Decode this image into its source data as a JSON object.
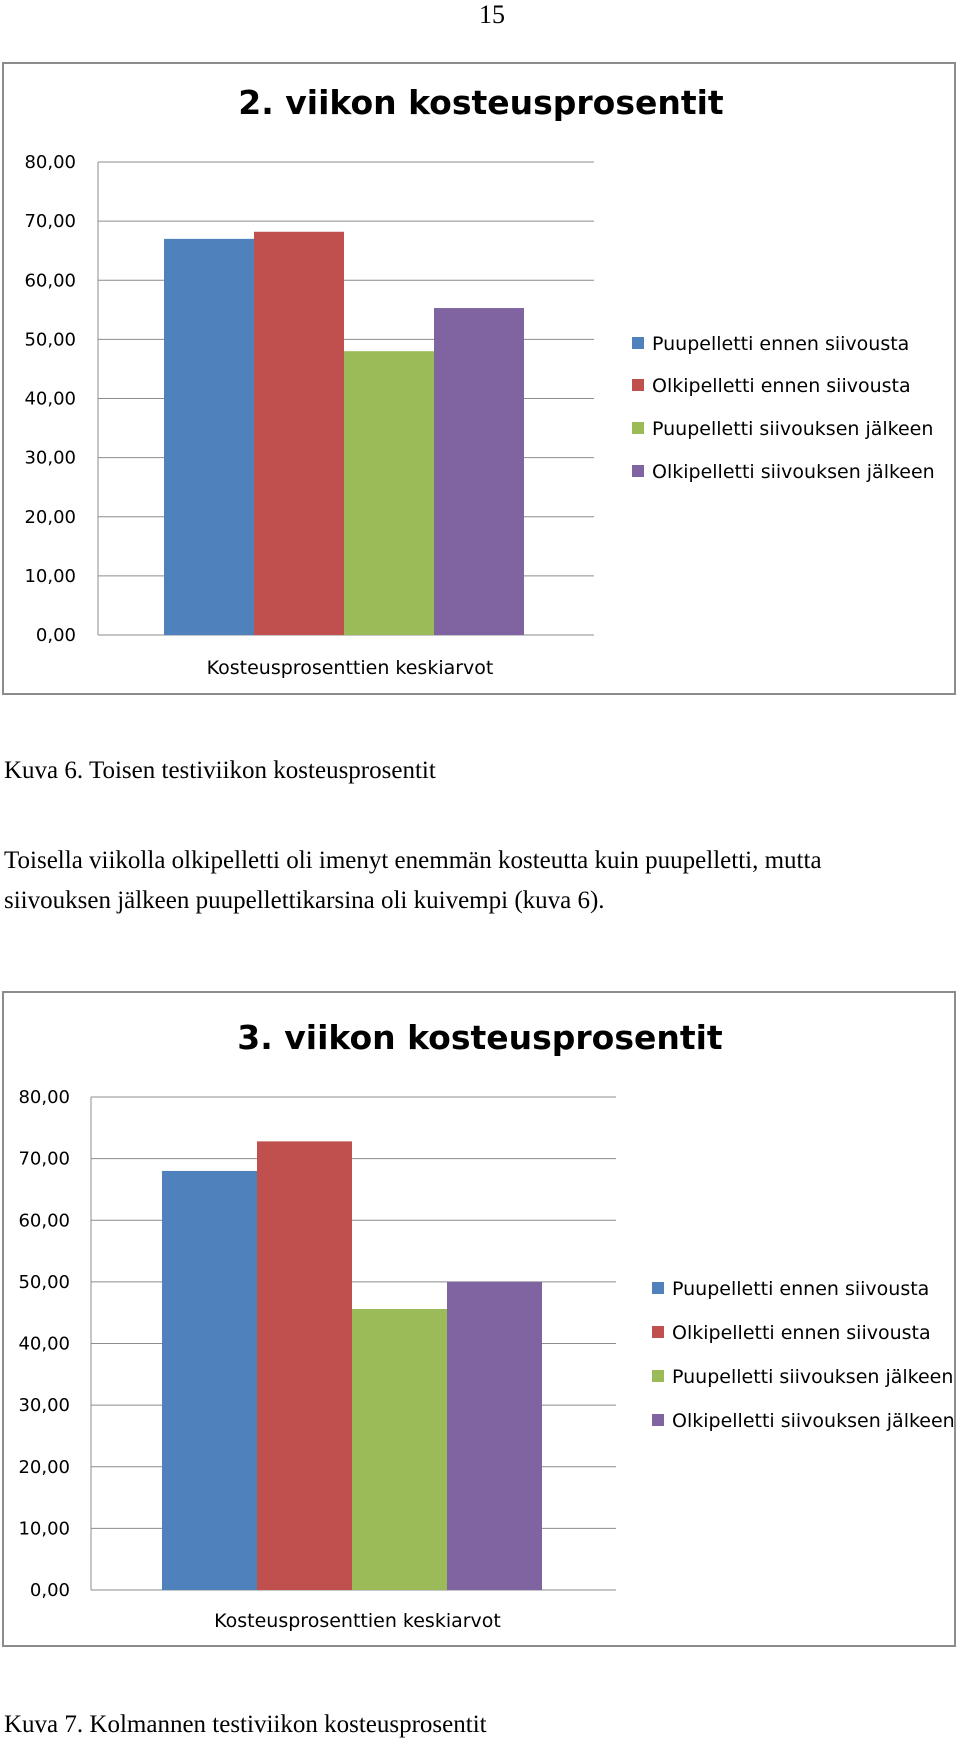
{
  "page_number": "15",
  "figure6": {
    "caption": "Kuva 6. Toisen testiviikon kosteusprosentit"
  },
  "paragraph": {
    "line1": "Toisella viikolla olkipelletti oli imenyt enemmän kosteutta kuin puupelletti, mutta",
    "line2": "siivouksen jälkeen puupellettikarsina oli kuivempi (kuva 6)."
  },
  "figure7": {
    "caption": "Kuva 7. Kolmannen testiviikon kosteusprosentit"
  },
  "colors": {
    "series1": "#4f81bd",
    "series2": "#c0504d",
    "series3": "#9bbb59",
    "series4": "#8064a2",
    "gridline": "#8c8c8c",
    "frame": "#8c8c8c"
  },
  "chart_data": [
    {
      "type": "bar",
      "title": "2. viikon kosteusprosentit",
      "categories": [
        "Kosteusprosenttien keskiarvot"
      ],
      "xlabel": "Kosteusprosenttien keskiarvot",
      "ylabel": "",
      "ylim": [
        0,
        80
      ],
      "yticks": [
        "0,00",
        "10,00",
        "20,00",
        "30,00",
        "40,00",
        "50,00",
        "60,00",
        "70,00",
        "80,00"
      ],
      "grid": true,
      "legend_position": "right",
      "series": [
        {
          "name": "Puupelletti ennen siivousta",
          "values": [
            67
          ]
        },
        {
          "name": "Olkipelletti ennen siivousta",
          "values": [
            68.2
          ]
        },
        {
          "name": "Puupelletti siivouksen jälkeen",
          "values": [
            48
          ]
        },
        {
          "name": "Olkipelletti siivouksen jälkeen",
          "values": [
            55.3
          ]
        }
      ]
    },
    {
      "type": "bar",
      "title": "3. viikon kosteusprosentit",
      "categories": [
        "Kosteusprosenttien keskiarvot"
      ],
      "xlabel": "Kosteusprosenttien keskiarvot",
      "ylabel": "",
      "ylim": [
        0,
        80
      ],
      "yticks": [
        "0,00",
        "10,00",
        "20,00",
        "30,00",
        "40,00",
        "50,00",
        "60,00",
        "70,00",
        "80,00"
      ],
      "grid": true,
      "legend_position": "right",
      "series": [
        {
          "name": "Puupelletti ennen siivousta",
          "values": [
            68
          ]
        },
        {
          "name": "Olkipelletti ennen siivousta",
          "values": [
            72.8
          ]
        },
        {
          "name": "Puupelletti siivouksen jälkeen",
          "values": [
            45.6
          ]
        },
        {
          "name": "Olkipelletti siivouksen jälkeen",
          "values": [
            50
          ]
        }
      ]
    }
  ]
}
